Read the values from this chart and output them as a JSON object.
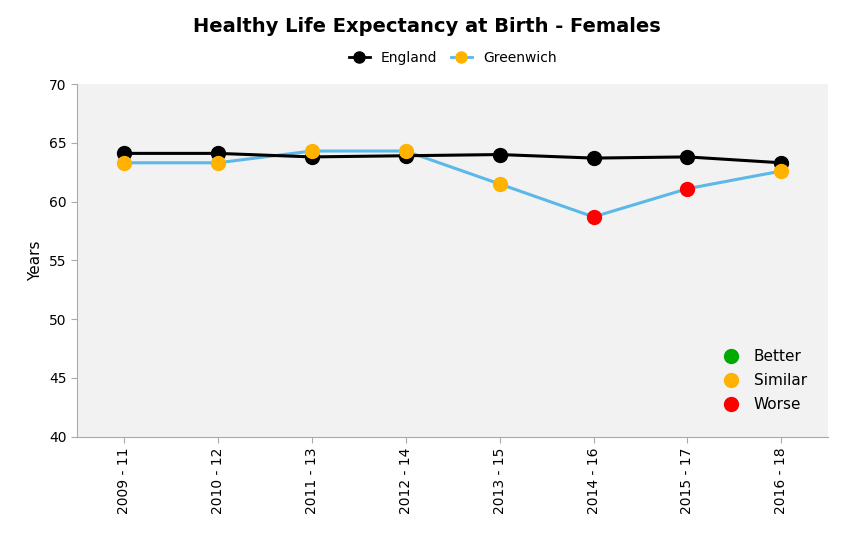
{
  "title": "Healthy Life Expectancy at Birth - Females",
  "ylabel": "Years",
  "xlabel": "",
  "x_labels": [
    "2009 - 11",
    "2010 - 12",
    "2011 - 13",
    "2012 - 14",
    "2013 - 15",
    "2014 - 16",
    "2015 - 17",
    "2016 - 18"
  ],
  "england_values": [
    64.1,
    64.1,
    63.8,
    63.9,
    64.0,
    63.7,
    63.8,
    63.3
  ],
  "greenwich_values": [
    63.3,
    63.3,
    64.3,
    64.3,
    61.5,
    58.7,
    61.1,
    62.6
  ],
  "greenwich_colors": [
    "#FFB300",
    "#FFB300",
    "#FFB300",
    "#FFB300",
    "#FFB300",
    "#FF0000",
    "#FF0000",
    "#FFB300"
  ],
  "england_line_color": "#000000",
  "greenwich_line_color": "#5BB8E8",
  "ylim": [
    40,
    70
  ],
  "yticks": [
    40,
    45,
    50,
    55,
    60,
    65,
    70
  ],
  "background_color": "#FFFFFF",
  "plot_bg_color": "#F2F2F2",
  "legend_items": [
    {
      "label": "Better",
      "color": "#00AA00"
    },
    {
      "label": "Similar",
      "color": "#FFB300"
    },
    {
      "label": "Worse",
      "color": "#FF0000"
    }
  ],
  "title_fontsize": 14,
  "axis_fontsize": 11,
  "tick_fontsize": 10
}
